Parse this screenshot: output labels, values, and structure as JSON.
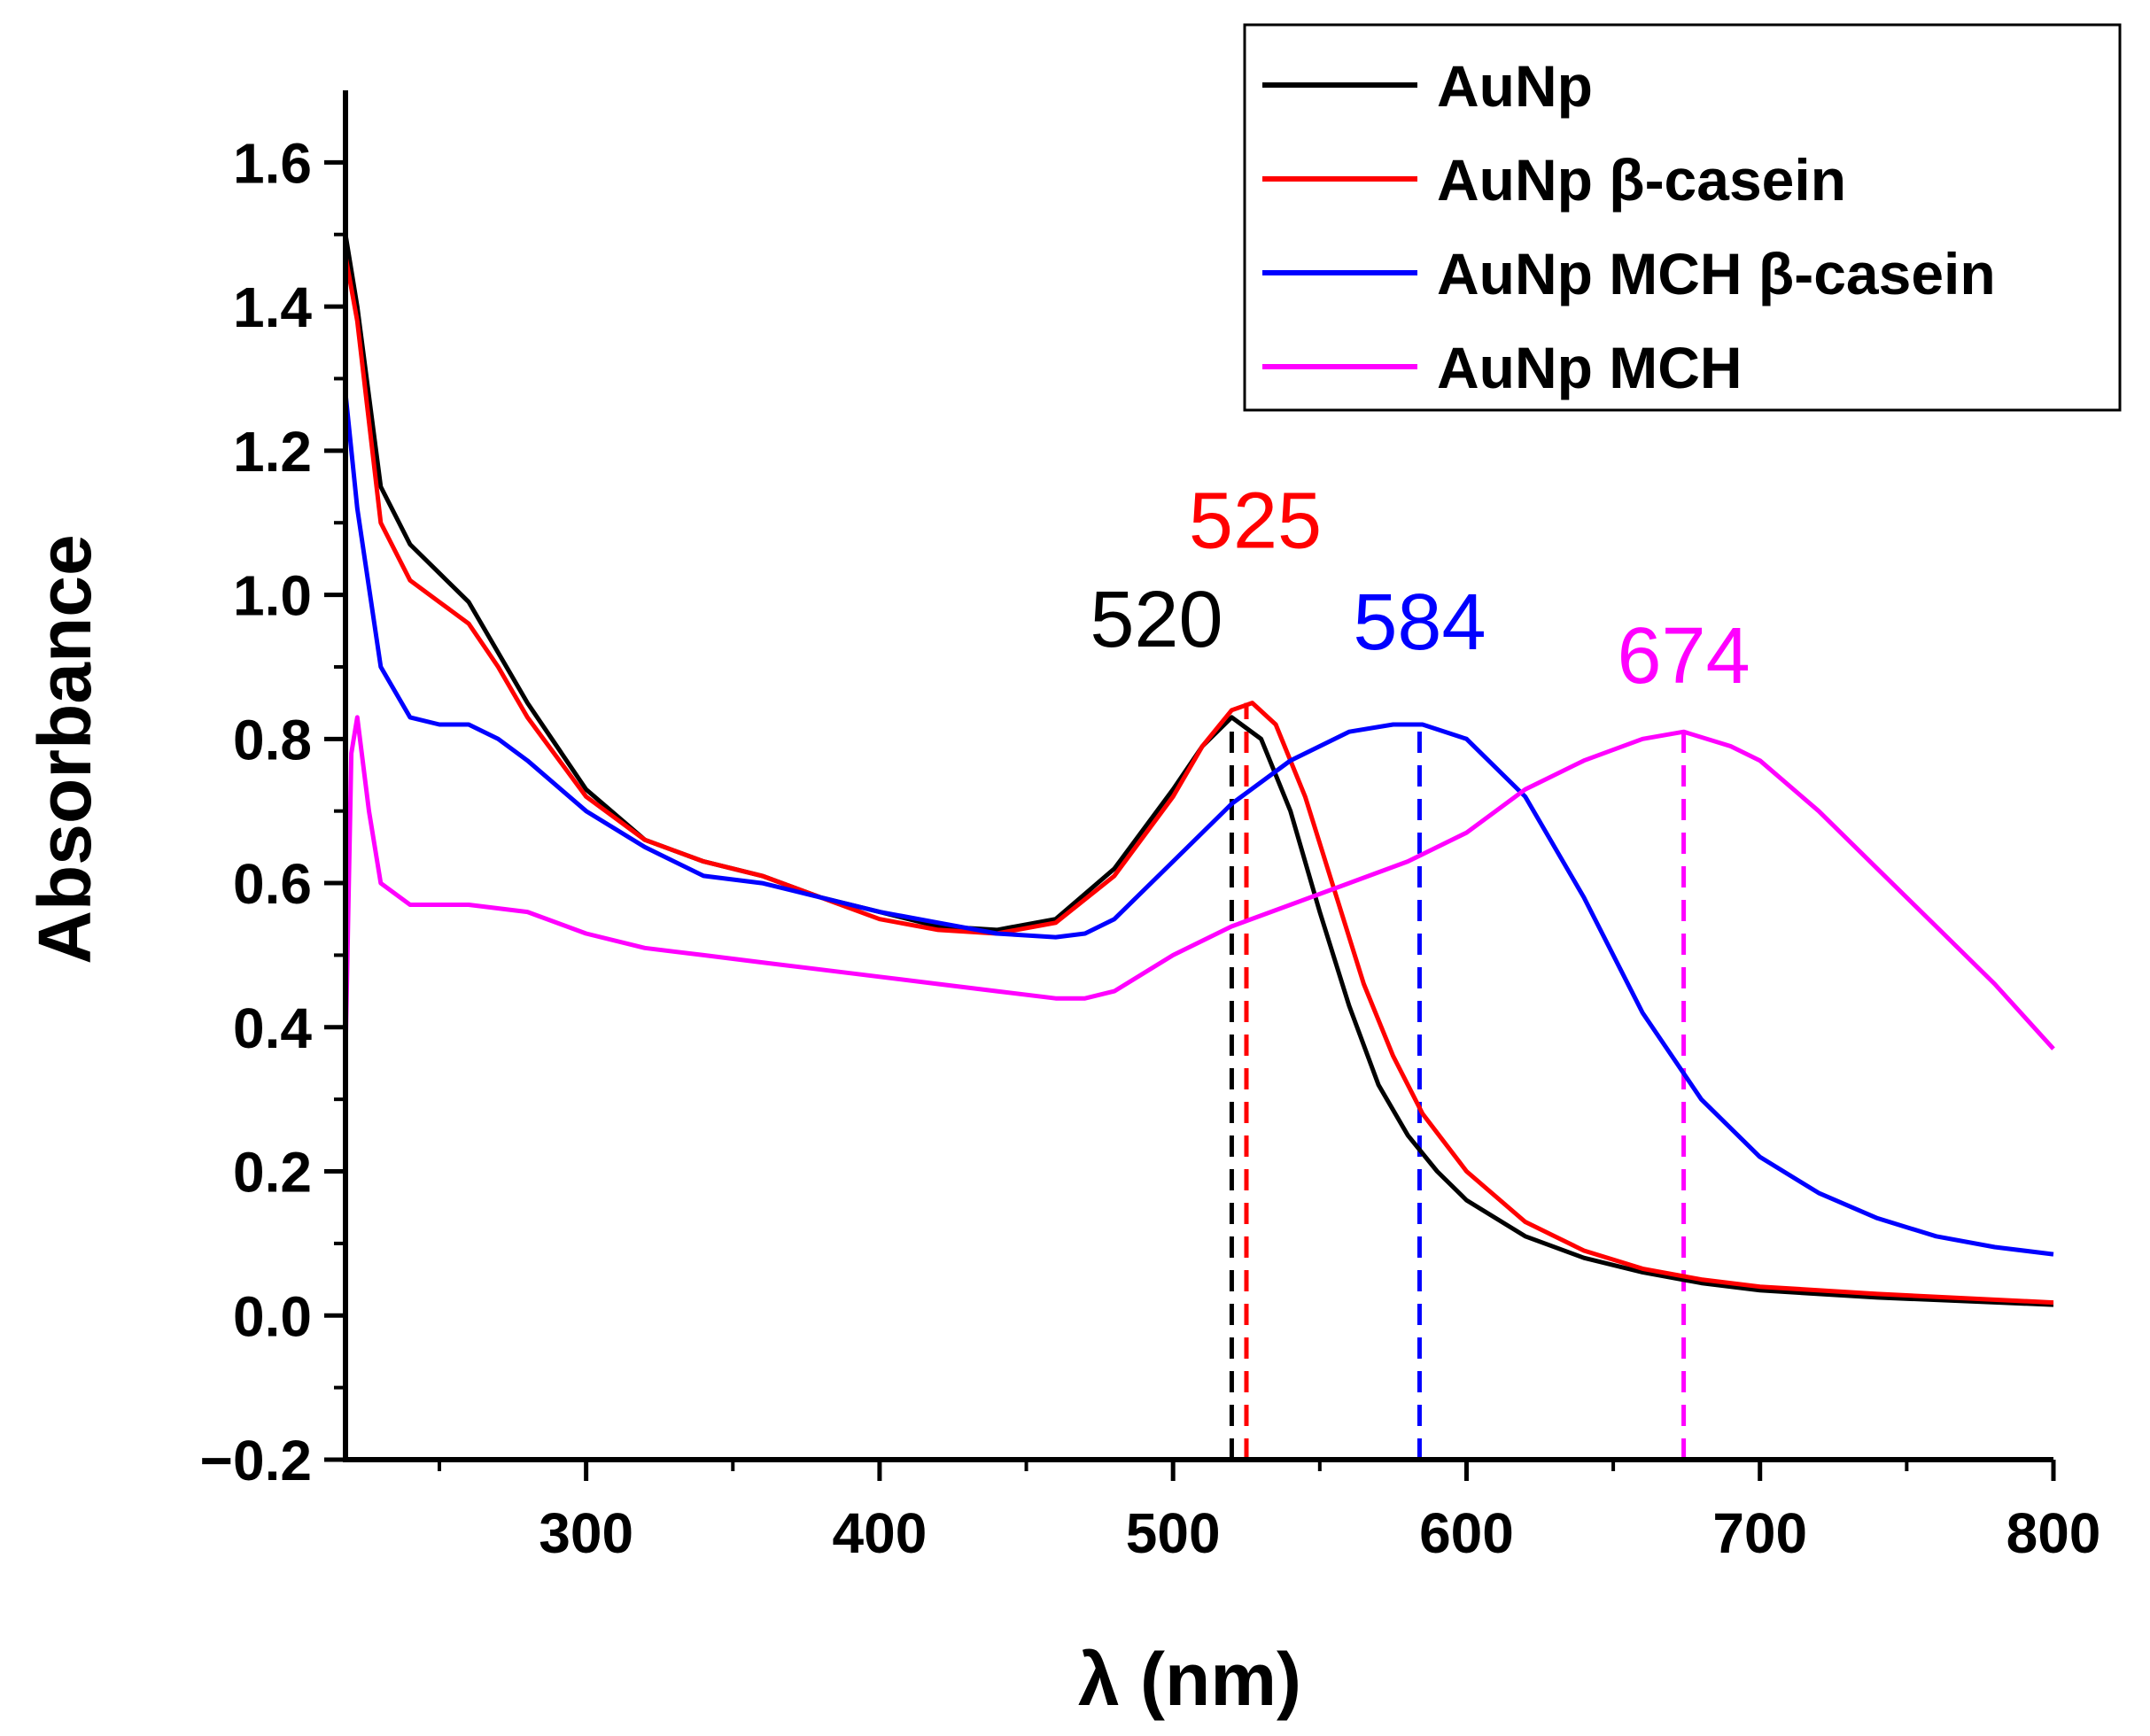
{
  "chart_data": {
    "type": "line",
    "xlabel": "λ (nm)",
    "ylabel": "Absorbance",
    "xlim": [
      218,
      800
    ],
    "ylim": [
      -0.2,
      1.7
    ],
    "x_ticks": [
      300,
      400,
      500,
      600,
      700,
      800
    ],
    "x_tick_labels": [
      "300",
      "400",
      "500",
      "600",
      "700",
      "800"
    ],
    "y_ticks": [
      -0.2,
      0.0,
      0.2,
      0.4,
      0.6,
      0.8,
      1.0,
      1.2,
      1.4,
      1.6
    ],
    "y_tick_labels": [
      "−0.2",
      "0.0",
      "0.2",
      "0.4",
      "0.6",
      "0.8",
      "1.0",
      "1.2",
      "1.4",
      "1.6"
    ],
    "legend_position": "top-right",
    "series": [
      {
        "name": "AuNp",
        "color": "#000000",
        "x": [
          218,
          222,
          230,
          240,
          250,
          260,
          270,
          280,
          300,
          320,
          340,
          360,
          380,
          400,
          420,
          440,
          460,
          480,
          500,
          510,
          520,
          530,
          540,
          550,
          560,
          570,
          580,
          590,
          600,
          620,
          640,
          660,
          680,
          700,
          740,
          800
        ],
        "y": [
          1.5,
          1.4,
          1.15,
          1.07,
          1.03,
          0.99,
          0.92,
          0.85,
          0.73,
          0.66,
          0.63,
          0.61,
          0.58,
          0.56,
          0.54,
          0.535,
          0.55,
          0.62,
          0.73,
          0.79,
          0.83,
          0.8,
          0.7,
          0.56,
          0.43,
          0.32,
          0.25,
          0.2,
          0.16,
          0.11,
          0.08,
          0.06,
          0.045,
          0.035,
          0.025,
          0.015
        ]
      },
      {
        "name": "AuNp β-casein",
        "color": "#ff0000",
        "x": [
          218,
          222,
          230,
          240,
          250,
          260,
          270,
          280,
          300,
          320,
          340,
          360,
          380,
          400,
          420,
          440,
          460,
          480,
          500,
          510,
          520,
          527,
          535,
          545,
          555,
          565,
          575,
          585,
          600,
          620,
          640,
          660,
          680,
          700,
          740,
          800
        ],
        "y": [
          1.47,
          1.38,
          1.1,
          1.02,
          0.99,
          0.96,
          0.9,
          0.83,
          0.72,
          0.66,
          0.63,
          0.61,
          0.58,
          0.55,
          0.535,
          0.53,
          0.545,
          0.61,
          0.72,
          0.79,
          0.84,
          0.85,
          0.82,
          0.72,
          0.59,
          0.46,
          0.36,
          0.28,
          0.2,
          0.13,
          0.09,
          0.065,
          0.05,
          0.04,
          0.03,
          0.018
        ]
      },
      {
        "name": "AuNp MCH β-casein",
        "color": "#0000ff",
        "x": [
          218,
          222,
          230,
          240,
          250,
          260,
          270,
          280,
          300,
          320,
          340,
          360,
          380,
          400,
          420,
          440,
          460,
          470,
          480,
          500,
          520,
          540,
          560,
          575,
          585,
          600,
          620,
          640,
          660,
          680,
          700,
          720,
          740,
          760,
          780,
          800
        ],
        "y": [
          1.28,
          1.12,
          0.9,
          0.83,
          0.82,
          0.82,
          0.8,
          0.77,
          0.7,
          0.65,
          0.61,
          0.6,
          0.58,
          0.56,
          0.545,
          0.53,
          0.525,
          0.53,
          0.55,
          0.63,
          0.71,
          0.77,
          0.81,
          0.82,
          0.82,
          0.8,
          0.72,
          0.58,
          0.42,
          0.3,
          0.22,
          0.17,
          0.135,
          0.11,
          0.095,
          0.085
        ]
      },
      {
        "name": "AuNp MCH",
        "color": "#ff00ff",
        "x": [
          218,
          220,
          222,
          226,
          230,
          240,
          260,
          280,
          300,
          320,
          340,
          360,
          380,
          400,
          420,
          440,
          460,
          470,
          480,
          500,
          520,
          540,
          560,
          580,
          600,
          620,
          640,
          660,
          674,
          690,
          700,
          720,
          740,
          760,
          780,
          800
        ],
        "y": [
          0.36,
          0.78,
          0.83,
          0.7,
          0.6,
          0.57,
          0.57,
          0.56,
          0.53,
          0.51,
          0.5,
          0.49,
          0.48,
          0.47,
          0.46,
          0.45,
          0.44,
          0.44,
          0.45,
          0.5,
          0.54,
          0.57,
          0.6,
          0.63,
          0.67,
          0.73,
          0.77,
          0.8,
          0.81,
          0.79,
          0.77,
          0.7,
          0.62,
          0.54,
          0.46,
          0.37
        ]
      }
    ],
    "annotations": [
      {
        "text": "520",
        "x": 520,
        "y": 0.83,
        "color": "#000000"
      },
      {
        "text": "525",
        "x": 525,
        "y": 0.85,
        "color": "#ff0000"
      },
      {
        "text": "584",
        "x": 584,
        "y": 0.82,
        "color": "#0000ff"
      },
      {
        "text": "674",
        "x": 674,
        "y": 0.81,
        "color": "#ff00ff"
      }
    ]
  }
}
